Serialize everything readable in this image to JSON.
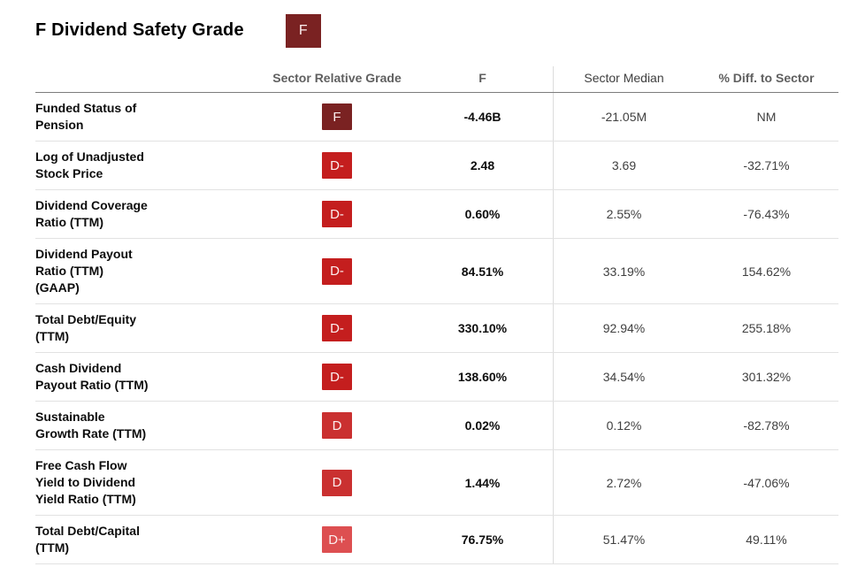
{
  "header": {
    "title": "F Dividend Safety Grade",
    "badge_grade": "F"
  },
  "grade_colors": {
    "F": "#7a2222",
    "D-": "#c41e1e",
    "D": "#ca3030",
    "D+": "#dd4f51"
  },
  "table": {
    "columns": {
      "grade": "Sector Relative Grade",
      "value": "F",
      "median": "Sector Median",
      "diff": "% Diff. to Sector"
    },
    "rows": [
      {
        "metric": "Funded Status of\nPension",
        "grade": "F",
        "value": "-4.46B",
        "median": "-21.05M",
        "diff": "NM"
      },
      {
        "metric": "Log of Unadjusted\nStock Price",
        "grade": "D-",
        "value": "2.48",
        "median": "3.69",
        "diff": "-32.71%"
      },
      {
        "metric": "Dividend Coverage\nRatio (TTM)",
        "grade": "D-",
        "value": "0.60%",
        "median": "2.55%",
        "diff": "-76.43%"
      },
      {
        "metric": "Dividend Payout\nRatio (TTM)\n(GAAP)",
        "grade": "D-",
        "value": "84.51%",
        "median": "33.19%",
        "diff": "154.62%"
      },
      {
        "metric": "Total Debt/Equity\n(TTM)",
        "grade": "D-",
        "value": "330.10%",
        "median": "92.94%",
        "diff": "255.18%"
      },
      {
        "metric": "Cash Dividend\nPayout Ratio (TTM)",
        "grade": "D-",
        "value": "138.60%",
        "median": "34.54%",
        "diff": "301.32%"
      },
      {
        "metric": "Sustainable\nGrowth Rate (TTM)",
        "grade": "D",
        "value": "0.02%",
        "median": "0.12%",
        "diff": "-82.78%"
      },
      {
        "metric": "Free Cash Flow\nYield to Dividend\nYield Ratio (TTM)",
        "grade": "D",
        "value": "1.44%",
        "median": "2.72%",
        "diff": "-47.06%"
      },
      {
        "metric": "Total Debt/Capital\n(TTM)",
        "grade": "D+",
        "value": "76.75%",
        "median": "51.47%",
        "diff": "49.11%"
      }
    ]
  }
}
